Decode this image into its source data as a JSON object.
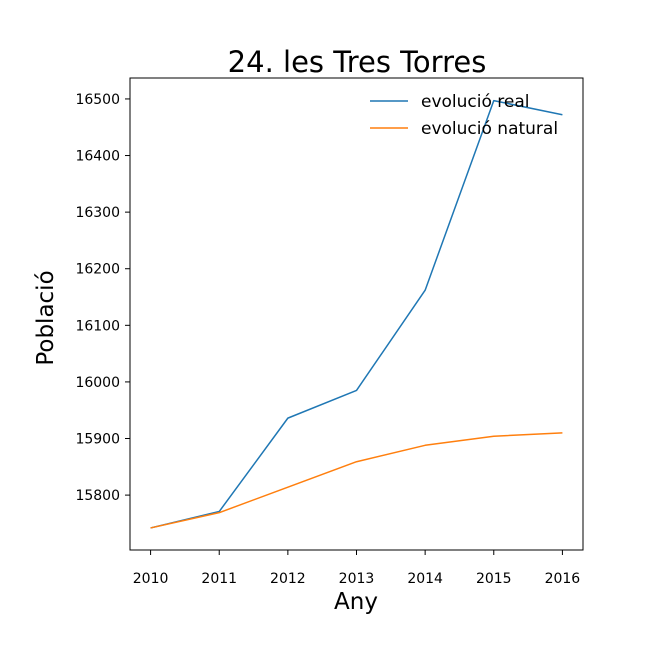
{
  "chart_data": {
    "type": "line",
    "title": "24. les Tres Torres",
    "xlabel": "Any",
    "ylabel": "Població",
    "x": [
      2010,
      2011,
      2012,
      2013,
      2014,
      2015,
      2016
    ],
    "xlim": [
      2009.7,
      2016.3
    ],
    "ylim": [
      15703,
      16537
    ],
    "yticks": [
      15800,
      15900,
      16000,
      16100,
      16200,
      16300,
      16400,
      16500
    ],
    "grid": false,
    "legend_position": "top-right",
    "series": [
      {
        "name": "evolució real",
        "color": "#1f77b4",
        "values": [
          15742,
          15771,
          15936,
          15985,
          16162,
          16497,
          16472
        ]
      },
      {
        "name": "evolució natural",
        "color": "#ff7f0e",
        "values": [
          15742,
          15769,
          15814,
          15859,
          15888,
          15904,
          15910
        ]
      }
    ]
  }
}
